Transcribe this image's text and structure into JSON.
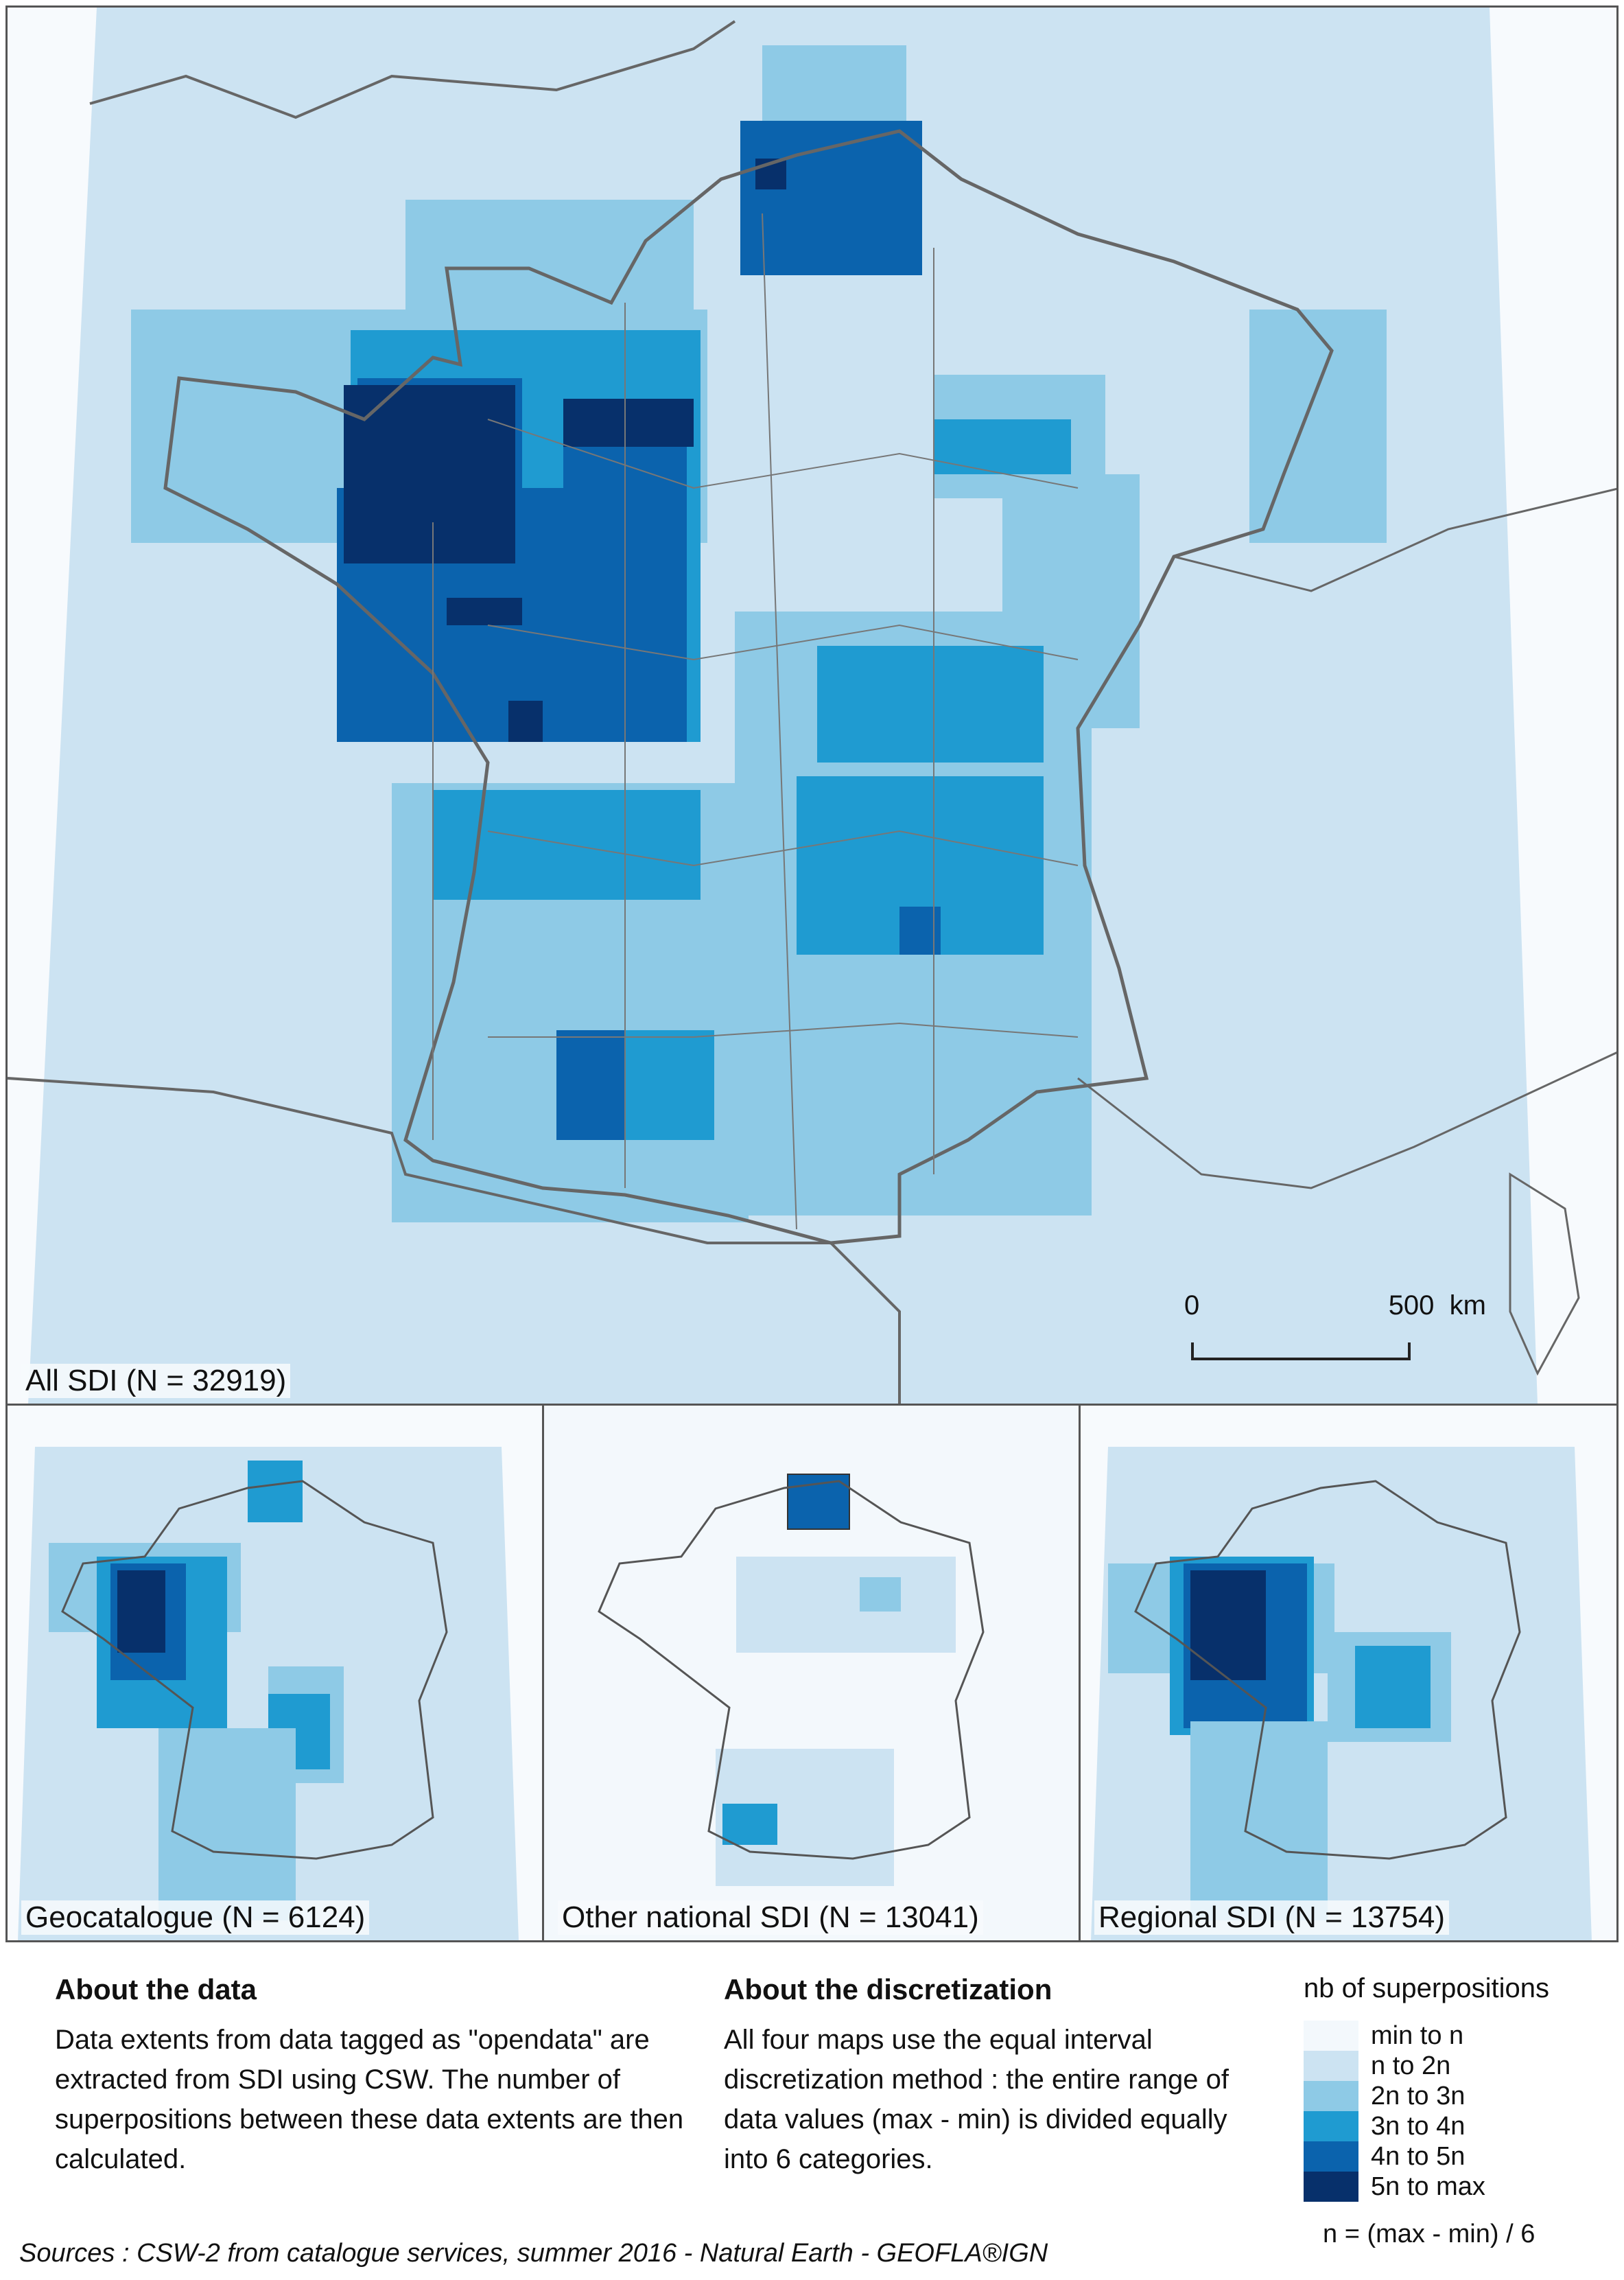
{
  "maps": {
    "main_label": "All SDI (N = 32919)",
    "geocatalogue_label": "Geocatalogue (N = 6124)",
    "other_national_label": "Other national SDI (N = 13041)",
    "regional_label": "Regional SDI (N = 13754)"
  },
  "scale_bar": {
    "start": "0",
    "end": "500",
    "unit": "km"
  },
  "about_data": {
    "title": "About the data",
    "text": "Data extents from data tagged as \"opendata\" are extracted from SDI using CSW. The number of superpositions between these data extents are then calculated."
  },
  "about_discretization": {
    "title": "About the discretization",
    "text": "All four maps use the equal interval discretization method : the entire range of data values (max - min) is divided equally into 6 categories."
  },
  "legend": {
    "title": "nb of superpositions",
    "classes": [
      {
        "label": "min to n",
        "color": "#f3f8fc"
      },
      {
        "label": "n to 2n",
        "color": "#cce3f2"
      },
      {
        "label": "2n to 3n",
        "color": "#8ecae6"
      },
      {
        "label": "3n to 4n",
        "color": "#1f9bd1"
      },
      {
        "label": "4n to 5n",
        "color": "#0b63ad"
      },
      {
        "label": "5n to max",
        "color": "#07306b"
      }
    ],
    "formula": "n = (max - min) / 6"
  },
  "sources": "Sources : CSW-2 from catalogue services, summer 2016 - Natural Earth - GEOFLA®IGN"
}
